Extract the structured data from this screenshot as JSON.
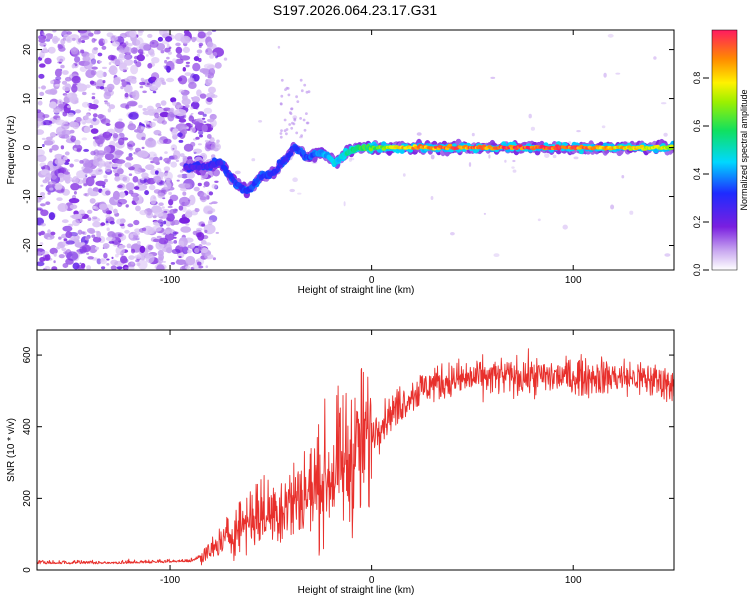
{
  "title": "S197.2026.064.23.17.G31",
  "colors": {
    "snr_line": "#e8302c",
    "blob_low": "#8a2be2",
    "blob_mid": "#00d8ff",
    "blob_high": "#ff2a2a"
  },
  "chart_data": [
    {
      "type": "heatmap",
      "name": "spectrogram",
      "xlabel": "Height of straight line (km)",
      "ylabel": "Frequency (Hz)",
      "xlim": [
        -166,
        150
      ],
      "ylim": [
        -25,
        24
      ],
      "xticks": [
        -100,
        0,
        100
      ],
      "yticks": [
        -20,
        -10,
        0,
        10,
        20
      ],
      "colorbar": {
        "label": "Normalized spectral amplitude",
        "range": [
          0,
          1
        ],
        "ticks": [
          0.0,
          0.2,
          0.4,
          0.6,
          0.8
        ],
        "colormap": "rainbow"
      },
      "ridge_frequency": {
        "x": [
          -90,
          -82,
          -75,
          -68,
          -62,
          -55,
          -48,
          -42,
          -38,
          -32,
          -25,
          -18,
          -12,
          -6,
          0,
          20,
          60,
          100,
          150
        ],
        "y": [
          -4,
          -4,
          -3,
          -7,
          -9,
          -6,
          -5,
          -2,
          0,
          -2,
          -1,
          -3,
          -1,
          0,
          0,
          0,
          0,
          0,
          0
        ]
      },
      "ridge_amplitude": {
        "x": [
          -90,
          -60,
          -40,
          -20,
          0,
          20,
          40,
          60,
          80,
          100,
          120,
          150
        ],
        "y": [
          0.25,
          0.35,
          0.3,
          0.45,
          0.65,
          0.9,
          0.95,
          0.95,
          1.0,
          0.95,
          0.85,
          0.75
        ]
      }
    },
    {
      "type": "line",
      "name": "snr",
      "xlabel": "Height of straight line (km)",
      "ylabel": "SNR (10 * v/v)",
      "xlim": [
        -166,
        150
      ],
      "ylim": [
        0,
        670
      ],
      "xticks": [
        -100,
        0,
        100
      ],
      "yticks": [
        0,
        200,
        400,
        600
      ],
      "series": [
        {
          "name": "SNR",
          "x": [
            -166,
            -150,
            -130,
            -110,
            -90,
            -80,
            -70,
            -60,
            -50,
            -40,
            -30,
            -20,
            -10,
            0,
            10,
            20,
            30,
            40,
            60,
            80,
            100,
            120,
            140,
            150
          ],
          "y": [
            20,
            20,
            20,
            22,
            25,
            50,
            100,
            150,
            160,
            190,
            220,
            270,
            310,
            380,
            440,
            490,
            520,
            530,
            540,
            540,
            540,
            540,
            530,
            520
          ]
        }
      ]
    }
  ]
}
